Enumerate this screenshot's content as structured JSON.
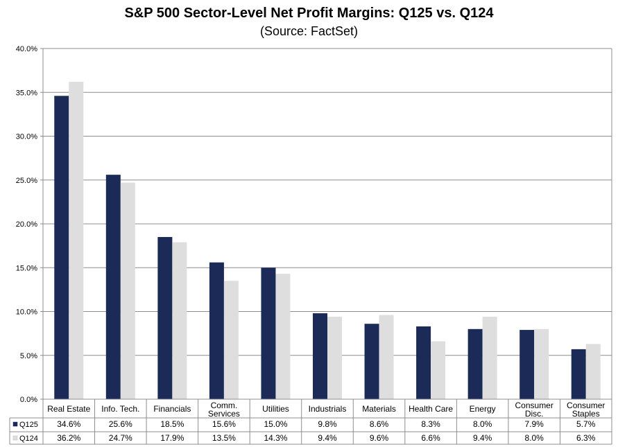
{
  "chart_data": {
    "type": "bar",
    "title": "S&P 500 Sector-Level Net Profit Margins: Q125 vs. Q124",
    "subtitle": "(Source: FactSet)",
    "categories": [
      [
        "Real Estate"
      ],
      [
        "Info. Tech."
      ],
      [
        "Financials"
      ],
      [
        "Comm.",
        "Services"
      ],
      [
        "Utilities"
      ],
      [
        "Industrials"
      ],
      [
        "Materials"
      ],
      [
        "Health Care"
      ],
      [
        "Energy"
      ],
      [
        "Consumer",
        "Disc."
      ],
      [
        "Consumer",
        "Staples"
      ]
    ],
    "series": [
      {
        "name": "Q125",
        "color": "#1b2a57",
        "values": [
          34.6,
          25.6,
          18.5,
          15.6,
          15.0,
          9.8,
          8.6,
          8.3,
          8.0,
          7.9,
          5.7
        ],
        "labels": [
          "34.6%",
          "25.6%",
          "18.5%",
          "15.6%",
          "15.0%",
          "9.8%",
          "8.6%",
          "8.3%",
          "8.0%",
          "7.9%",
          "5.7%"
        ]
      },
      {
        "name": "Q124",
        "color": "#dedede",
        "values": [
          36.2,
          24.7,
          17.9,
          13.5,
          14.3,
          9.4,
          9.6,
          6.6,
          9.4,
          8.0,
          6.3
        ],
        "labels": [
          "36.2%",
          "24.7%",
          "17.9%",
          "13.5%",
          "14.3%",
          "9.4%",
          "9.6%",
          "6.6%",
          "9.4%",
          "8.0%",
          "6.3%"
        ]
      }
    ],
    "ylim": [
      0,
      40
    ],
    "yticks": [
      "0.0%",
      "5.0%",
      "10.0%",
      "15.0%",
      "20.0%",
      "25.0%",
      "30.0%",
      "35.0%",
      "40.0%"
    ],
    "grid": true,
    "legend": "data-table-bottom"
  }
}
